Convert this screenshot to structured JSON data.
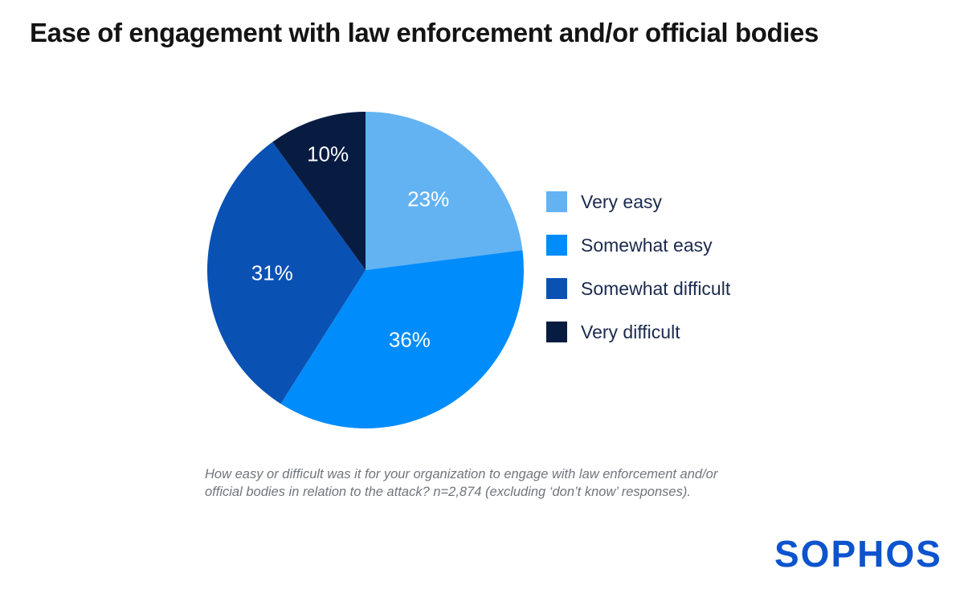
{
  "header": {
    "title": "Ease of engagement with law enforcement and/or official bodies"
  },
  "chart_data": {
    "type": "pie",
    "title": "Ease of engagement with law enforcement and/or official bodies",
    "categories": [
      "Very easy",
      "Somewhat easy",
      "Somewhat difficult",
      "Very difficult"
    ],
    "values": [
      23,
      36,
      31,
      10
    ],
    "value_labels": [
      "23%",
      "36%",
      "31%",
      "10%"
    ],
    "colors": [
      "#63B3F3",
      "#008CFA",
      "#0A51B4",
      "#081C42"
    ],
    "start_angle_deg": 0,
    "direction": "clockwise",
    "legend_position": "right",
    "label_radius_fraction": [
      0.6,
      0.52,
      0.59,
      0.77
    ],
    "label_color": "#FFFFFF"
  },
  "footnote": {
    "lines": [
      "How easy or difficult was it for your organization to engage with law enforcement and/or",
      "official bodies in relation to the attack? n=2,874 (excluding ‘don’t know’ responses)."
    ]
  },
  "logo": {
    "text": "SOPHOS",
    "color": "#0C54CE"
  }
}
